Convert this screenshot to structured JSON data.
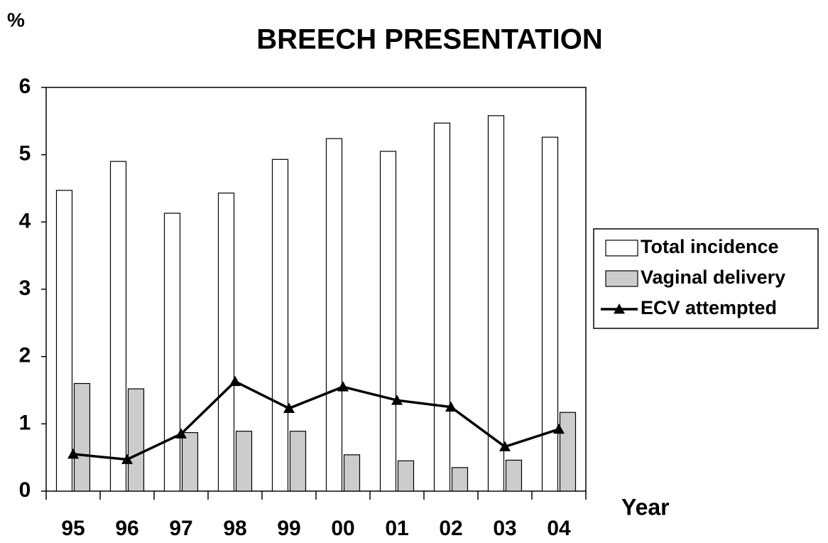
{
  "chart_data": {
    "type": "bar",
    "title": "BREECH PRESENTATION",
    "y_label": "%",
    "x_label": "Year",
    "categories": [
      "95",
      "96",
      "97",
      "98",
      "99",
      "00",
      "01",
      "02",
      "03",
      "04"
    ],
    "series": [
      {
        "name": "Total incidence",
        "type": "bar",
        "color": "#ffffff",
        "values": [
          4.47,
          4.9,
          4.13,
          4.43,
          4.93,
          5.24,
          5.05,
          5.47,
          5.58,
          5.26
        ]
      },
      {
        "name": "Vaginal delivery",
        "type": "bar",
        "color": "#cccccc",
        "values": [
          1.6,
          1.52,
          0.87,
          0.89,
          0.89,
          0.54,
          0.45,
          0.35,
          0.46,
          1.17
        ]
      },
      {
        "name": "ECV attempted",
        "type": "line",
        "color": "#000000",
        "values": [
          0.55,
          0.47,
          0.85,
          1.63,
          1.23,
          1.55,
          1.35,
          1.25,
          0.66,
          0.92
        ]
      }
    ],
    "ylim": [
      0,
      6
    ],
    "yticks": [
      0,
      1,
      2,
      3,
      4,
      5,
      6
    ],
    "grid": false,
    "legend": "right"
  }
}
